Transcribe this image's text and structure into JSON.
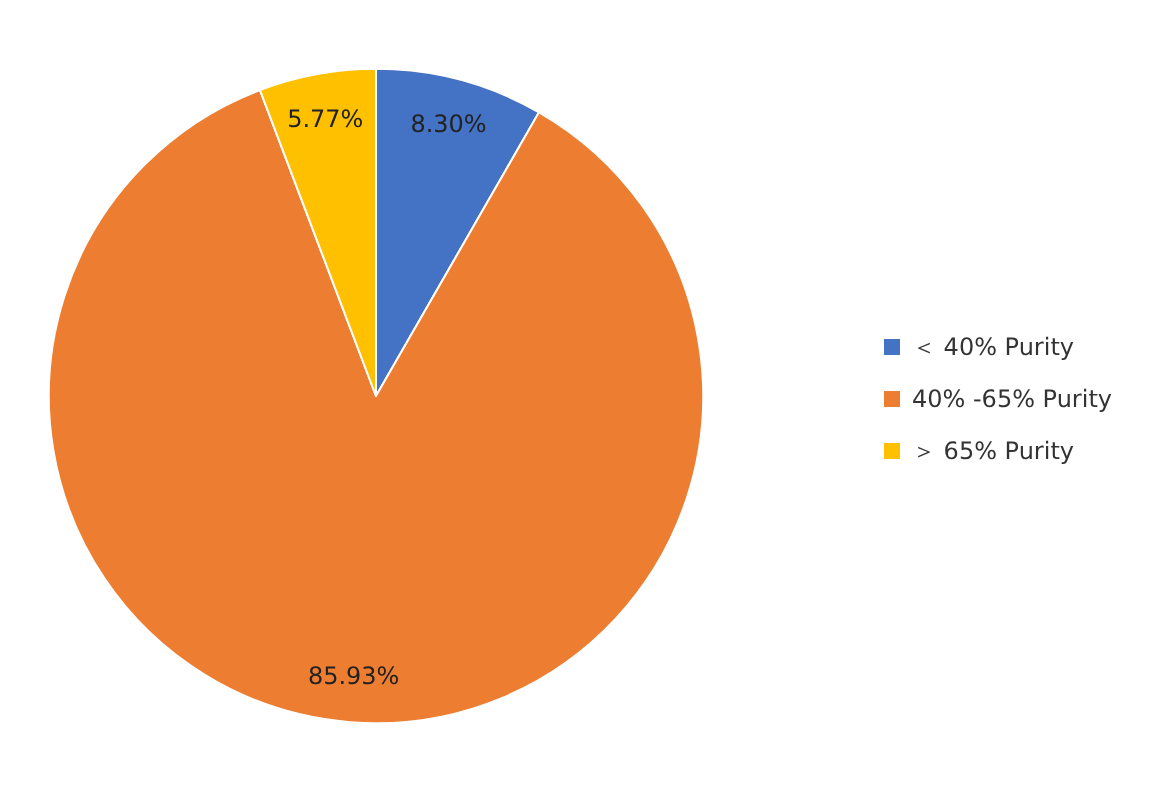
{
  "chart_data": {
    "type": "pie",
    "categories": [
      "＜ 40% Purity",
      "40% -65% Purity",
      "＞ 65% Purity"
    ],
    "values": [
      8.3,
      85.93,
      5.77
    ],
    "colors": [
      "#4472c4",
      "#ed7d31",
      "#ffc000"
    ],
    "value_labels": [
      "8.30%",
      "85.93%",
      "5.77%"
    ],
    "legend": "right"
  }
}
